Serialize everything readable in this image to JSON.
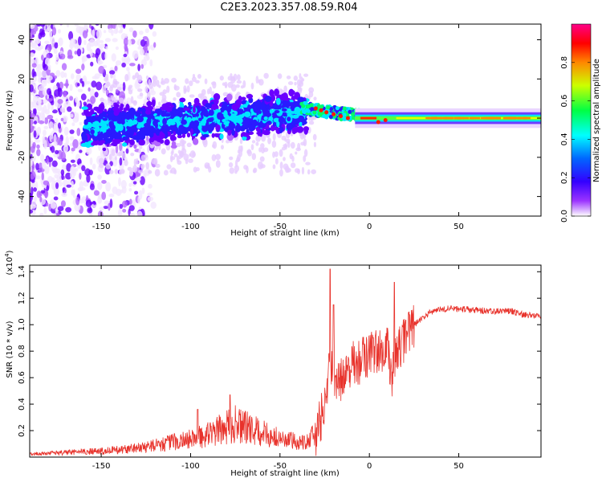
{
  "page": {
    "title": "C2E3.2023.357.08.59.R04"
  },
  "chart_data": [
    {
      "type": "heatmap",
      "title": "C2E3.2023.357.08.59.R04",
      "xlabel": "Height of straight line (km)",
      "ylabel": "Frequency (Hz)",
      "xlim": [
        -190,
        96
      ],
      "ylim": [
        -50,
        48
      ],
      "x_ticks": [
        -150,
        -100,
        -50,
        0,
        50
      ],
      "y_ticks": [
        -40,
        -20,
        0,
        20,
        40
      ],
      "grid": false,
      "colorbar": {
        "label": "Normalized spectral amplitude",
        "range": [
          0,
          1
        ],
        "ticks": [
          0.0,
          0.2,
          0.4,
          0.6,
          0.8
        ],
        "colormap": [
          "#ffffff",
          "#7b00ff",
          "#0000ff",
          "#00ffff",
          "#00ff00",
          "#ffff00",
          "#ff0000",
          "#ff00ff"
        ]
      },
      "description_of_signal": [
        {
          "x_range": [
            -190,
            -140
          ],
          "freq_spread_hz": 48,
          "amplitude": 0.05
        },
        {
          "x_range": [
            -140,
            -40
          ],
          "freq_center_hz": -4,
          "freq_spread_hz": 10,
          "amplitude": 0.3
        },
        {
          "x_range": [
            -40,
            -5
          ],
          "freq_center_hz": 3,
          "freq_spread_hz": 4,
          "amplitude": 0.6
        },
        {
          "x_range": [
            -5,
            96
          ],
          "freq_center_hz": 0,
          "freq_spread_hz": 2,
          "amplitude": 0.85
        }
      ]
    },
    {
      "type": "line",
      "xlabel": "Height of straight line (km)",
      "ylabel": "SNR (10 * v/v)",
      "y_multiplier": "(x10^4)",
      "xlim": [
        -190,
        96
      ],
      "ylim": [
        0,
        1.45
      ],
      "x_ticks": [
        -150,
        -100,
        -50,
        0,
        50
      ],
      "y_ticks": [
        0.2,
        0.4,
        0.6,
        0.8,
        1.0,
        1.2,
        1.4
      ],
      "color": "#e8322b",
      "series": [
        {
          "x": [
            -190,
            -170,
            -150,
            -140,
            -130,
            -120,
            -110,
            -100,
            -90,
            -80,
            -75,
            -70,
            -65,
            -60,
            -55,
            -50,
            -45,
            -40,
            -35,
            -30,
            -27,
            -25,
            -22,
            -20,
            -18,
            -15,
            -12,
            -10,
            -5,
            0,
            5,
            10,
            13,
            15,
            20,
            25,
            30,
            35,
            40,
            50,
            60,
            70,
            80,
            85,
            90,
            96
          ],
          "y": [
            0.02,
            0.03,
            0.04,
            0.05,
            0.06,
            0.08,
            0.1,
            0.12,
            0.15,
            0.2,
            0.22,
            0.2,
            0.18,
            0.16,
            0.14,
            0.12,
            0.11,
            0.1,
            0.11,
            0.15,
            0.3,
            0.4,
            0.7,
            0.6,
            0.55,
            0.6,
            0.65,
            0.7,
            0.72,
            0.78,
            0.8,
            0.82,
            0.6,
            0.78,
            0.9,
            1.0,
            1.05,
            1.1,
            1.12,
            1.12,
            1.11,
            1.1,
            1.1,
            1.08,
            1.07,
            1.07
          ]
        }
      ],
      "peaks": [
        {
          "x": -22,
          "y": 1.42
        },
        {
          "x": -20,
          "y": 1.15
        },
        {
          "x": 14,
          "y": 1.32
        },
        {
          "x": -78,
          "y": 0.47
        },
        {
          "x": -96,
          "y": 0.36
        }
      ]
    }
  ],
  "labels": {
    "top_y": "Frequency (Hz)",
    "top_x": "Height of straight line (km)",
    "bottom_y": "SNR (10 * v/v)",
    "bottom_x": "Height of straight line (km)",
    "bottom_mult": "(x10^4)",
    "colorbar": "Normalized spectral amplitude"
  }
}
